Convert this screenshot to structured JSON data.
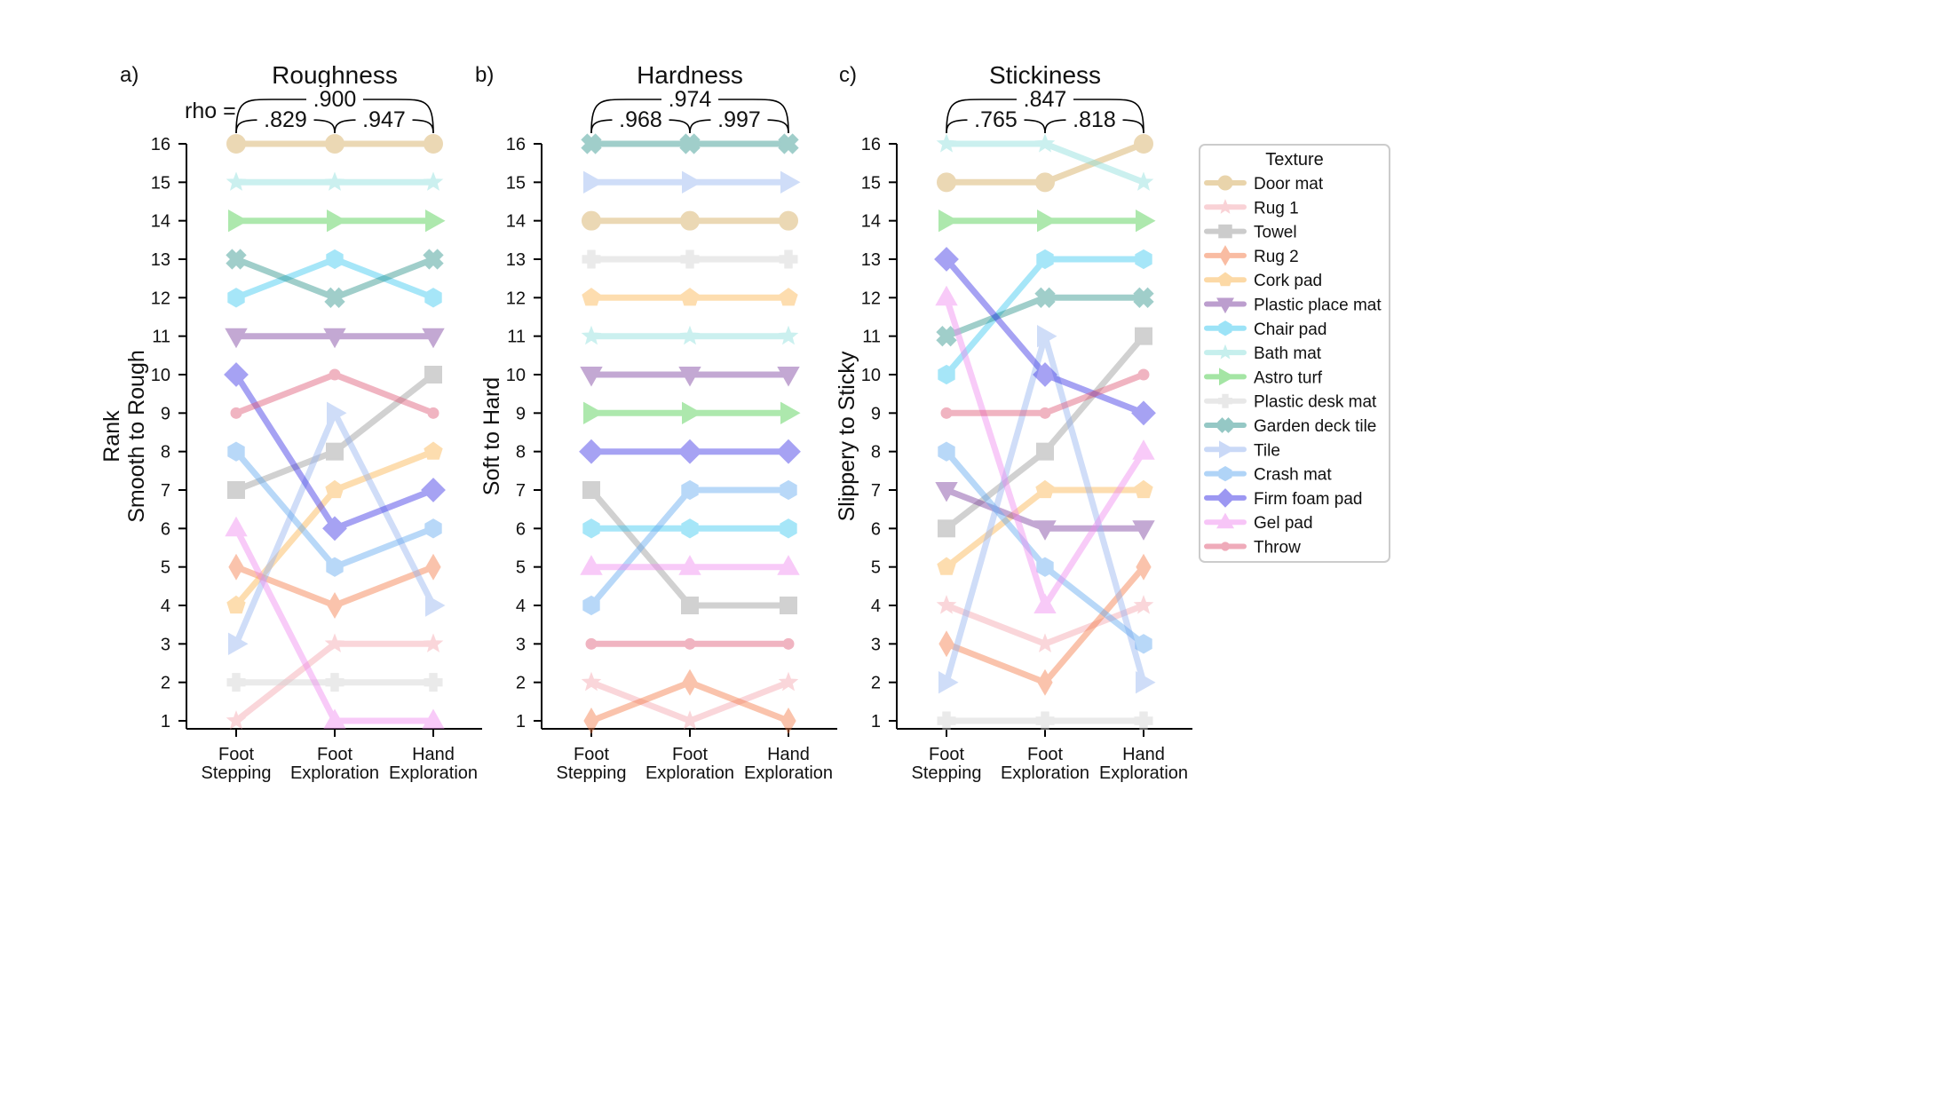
{
  "chart_data": [
    {
      "type": "line",
      "panel_label": "a)",
      "title": "Roughness",
      "ylabel_lines": [
        "Rank",
        "Smooth to Rough"
      ],
      "x": [
        "Foot\nStepping",
        "Foot\nExploration",
        "Hand\nExploration"
      ],
      "ylim": [
        1,
        16
      ],
      "yticks": [
        1,
        2,
        3,
        4,
        5,
        6,
        7,
        8,
        9,
        10,
        11,
        12,
        13,
        14,
        15,
        16
      ],
      "rho_prefix": "rho =",
      "correlations": [
        {
          "pair": [
            0,
            2
          ],
          "value": ".900"
        },
        {
          "pair": [
            0,
            1
          ],
          "value": ".829"
        },
        {
          "pair": [
            1,
            2
          ],
          "value": ".947"
        }
      ],
      "series": [
        {
          "name": "Door mat",
          "values": [
            16,
            16,
            16
          ]
        },
        {
          "name": "Rug 1",
          "values": [
            1,
            3,
            3
          ]
        },
        {
          "name": "Towel",
          "values": [
            7,
            8,
            10
          ]
        },
        {
          "name": "Rug 2",
          "values": [
            5,
            4,
            5
          ]
        },
        {
          "name": "Cork pad",
          "values": [
            4,
            7,
            8
          ]
        },
        {
          "name": "Plastic place mat",
          "values": [
            11,
            11,
            11
          ]
        },
        {
          "name": "Chair pad",
          "values": [
            12,
            13,
            12
          ]
        },
        {
          "name": "Bath mat",
          "values": [
            15,
            15,
            15
          ]
        },
        {
          "name": "Astro turf",
          "values": [
            14,
            14,
            14
          ]
        },
        {
          "name": "Plastic desk mat",
          "values": [
            2,
            2,
            2
          ]
        },
        {
          "name": "Garden deck tile",
          "values": [
            13,
            12,
            13
          ]
        },
        {
          "name": "Tile",
          "values": [
            3,
            9,
            4
          ]
        },
        {
          "name": "Crash mat",
          "values": [
            8,
            5,
            6
          ]
        },
        {
          "name": "Firm foam pad",
          "values": [
            10,
            6,
            7
          ]
        },
        {
          "name": "Gel pad",
          "values": [
            6,
            1,
            1
          ]
        },
        {
          "name": "Throw",
          "values": [
            9,
            10,
            9
          ]
        }
      ]
    },
    {
      "type": "line",
      "panel_label": "b)",
      "title": "Hardness",
      "ylabel_lines": [
        "Soft to Hard"
      ],
      "x": [
        "Foot\nStepping",
        "Foot\nExploration",
        "Hand\nExploration"
      ],
      "ylim": [
        1,
        16
      ],
      "yticks": [
        1,
        2,
        3,
        4,
        5,
        6,
        7,
        8,
        9,
        10,
        11,
        12,
        13,
        14,
        15,
        16
      ],
      "rho_prefix": "",
      "correlations": [
        {
          "pair": [
            0,
            2
          ],
          "value": ".974"
        },
        {
          "pair": [
            0,
            1
          ],
          "value": ".968"
        },
        {
          "pair": [
            1,
            2
          ],
          "value": ".997"
        }
      ],
      "series": [
        {
          "name": "Door mat",
          "values": [
            14,
            14,
            14
          ]
        },
        {
          "name": "Rug 1",
          "values": [
            2,
            1,
            2
          ]
        },
        {
          "name": "Towel",
          "values": [
            7,
            4,
            4
          ]
        },
        {
          "name": "Rug 2",
          "values": [
            1,
            2,
            1
          ]
        },
        {
          "name": "Cork pad",
          "values": [
            12,
            12,
            12
          ]
        },
        {
          "name": "Plastic place mat",
          "values": [
            10,
            10,
            10
          ]
        },
        {
          "name": "Chair pad",
          "values": [
            6,
            6,
            6
          ]
        },
        {
          "name": "Bath mat",
          "values": [
            11,
            11,
            11
          ]
        },
        {
          "name": "Astro turf",
          "values": [
            9,
            9,
            9
          ]
        },
        {
          "name": "Plastic desk mat",
          "values": [
            13,
            13,
            13
          ]
        },
        {
          "name": "Garden deck tile",
          "values": [
            16,
            16,
            16
          ]
        },
        {
          "name": "Tile",
          "values": [
            15,
            15,
            15
          ]
        },
        {
          "name": "Crash mat",
          "values": [
            4,
            7,
            7
          ]
        },
        {
          "name": "Firm foam pad",
          "values": [
            8,
            8,
            8
          ]
        },
        {
          "name": "Gel pad",
          "values": [
            5,
            5,
            5
          ]
        },
        {
          "name": "Throw",
          "values": [
            3,
            3,
            3
          ]
        }
      ]
    },
    {
      "type": "line",
      "panel_label": "c)",
      "title": "Stickiness",
      "ylabel_lines": [
        "Slippery to Sticky"
      ],
      "x": [
        "Foot\nStepping",
        "Foot\nExploration",
        "Hand\nExploration"
      ],
      "ylim": [
        1,
        16
      ],
      "yticks": [
        1,
        2,
        3,
        4,
        5,
        6,
        7,
        8,
        9,
        10,
        11,
        12,
        13,
        14,
        15,
        16
      ],
      "rho_prefix": "",
      "correlations": [
        {
          "pair": [
            0,
            2
          ],
          "value": ".847"
        },
        {
          "pair": [
            0,
            1
          ],
          "value": ".765"
        },
        {
          "pair": [
            1,
            2
          ],
          "value": ".818"
        }
      ],
      "series": [
        {
          "name": "Door mat",
          "values": [
            15,
            15,
            16
          ]
        },
        {
          "name": "Rug 1",
          "values": [
            4,
            3,
            4
          ]
        },
        {
          "name": "Towel",
          "values": [
            6,
            8,
            11
          ]
        },
        {
          "name": "Rug 2",
          "values": [
            3,
            2,
            5
          ]
        },
        {
          "name": "Cork pad",
          "values": [
            5,
            7,
            7
          ]
        },
        {
          "name": "Plastic place mat",
          "values": [
            7,
            6,
            6
          ]
        },
        {
          "name": "Chair pad",
          "values": [
            10,
            13,
            13
          ]
        },
        {
          "name": "Bath mat",
          "values": [
            16,
            16,
            15
          ]
        },
        {
          "name": "Astro turf",
          "values": [
            14,
            14,
            14
          ]
        },
        {
          "name": "Plastic desk mat",
          "values": [
            1,
            1,
            1
          ]
        },
        {
          "name": "Garden deck tile",
          "values": [
            11,
            12,
            12
          ]
        },
        {
          "name": "Tile",
          "values": [
            2,
            11,
            2
          ]
        },
        {
          "name": "Crash mat",
          "values": [
            8,
            5,
            3
          ]
        },
        {
          "name": "Firm foam pad",
          "values": [
            13,
            10,
            9
          ]
        },
        {
          "name": "Gel pad",
          "values": [
            12,
            4,
            8
          ]
        },
        {
          "name": "Throw",
          "values": [
            9,
            9,
            10
          ]
        }
      ]
    }
  ],
  "legend": {
    "title": "Texture",
    "placement": "right",
    "entries": [
      {
        "name": "Door mat",
        "color": "#d4aa5a",
        "marker": "circle"
      },
      {
        "name": "Rug 1",
        "color": "#f4a6ae",
        "marker": "star"
      },
      {
        "name": "Towel",
        "color": "#9a9a9a",
        "marker": "square"
      },
      {
        "name": "Rug 2",
        "color": "#f47c48",
        "marker": "thin-diamond"
      },
      {
        "name": "Cork pad",
        "color": "#fbb450",
        "marker": "pentagon"
      },
      {
        "name": "Plastic place mat",
        "color": "#7b3f9e",
        "marker": "triangle-down"
      },
      {
        "name": "Chair pad",
        "color": "#3cc8f0",
        "marker": "hexagon"
      },
      {
        "name": "Bath mat",
        "color": "#8ee0dc",
        "marker": "star"
      },
      {
        "name": "Astro turf",
        "color": "#4ccd4c",
        "marker": "triangle-right"
      },
      {
        "name": "Plastic desk mat",
        "color": "#d2d2d2",
        "marker": "plus"
      },
      {
        "name": "Garden deck tile",
        "color": "#2e938c",
        "marker": "x"
      },
      {
        "name": "Tile",
        "color": "#96b4f0",
        "marker": "triangle-right"
      },
      {
        "name": "Crash mat",
        "color": "#64aaf0",
        "marker": "hexagon"
      },
      {
        "name": "Firm foam pad",
        "color": "#3c32e6",
        "marker": "diamond"
      },
      {
        "name": "Gel pad",
        "color": "#f08cf0",
        "marker": "triangle-up"
      },
      {
        "name": "Throw",
        "color": "#e05a78",
        "marker": "dot"
      }
    ]
  }
}
